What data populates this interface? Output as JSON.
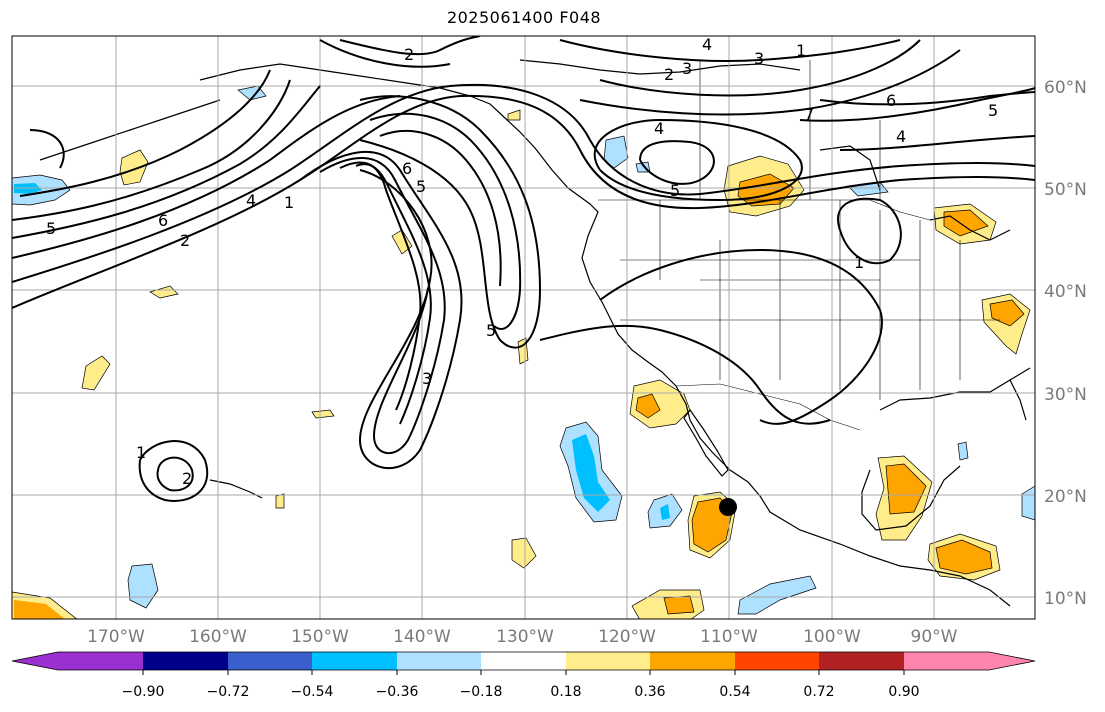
{
  "title": "2025061400 F048",
  "map": {
    "latitude_labels": [
      "60°N",
      "50°N",
      "40°N",
      "30°N",
      "20°N",
      "10°N"
    ],
    "longitude_labels": [
      "170°W",
      "160°W",
      "150°W",
      "140°W",
      "130°W",
      "120°W",
      "110°W",
      "100°W",
      "90°W"
    ],
    "contour_labels": [
      "2",
      "2",
      "3",
      "4",
      "1",
      "3",
      "6",
      "5",
      "4",
      "4",
      "5",
      "7",
      "6",
      "5",
      "6",
      "4",
      "1",
      "2",
      "5",
      "5",
      "3",
      "1",
      "2",
      "1"
    ],
    "marker": "storm-center"
  },
  "colorbar": {
    "tick_labels": [
      "−0.90",
      "−0.72",
      "−0.54",
      "−0.36",
      "−0.18",
      "0.18",
      "0.36",
      "0.54",
      "0.72",
      "0.90"
    ],
    "colors": [
      "#9b30d0",
      "#00008b",
      "#3a5fcd",
      "#00bfff",
      "#aee0ff",
      "#ffffff",
      "#ffec8b",
      "#ffa500",
      "#ff4500",
      "#b22222",
      "#ff85ad"
    ]
  }
}
